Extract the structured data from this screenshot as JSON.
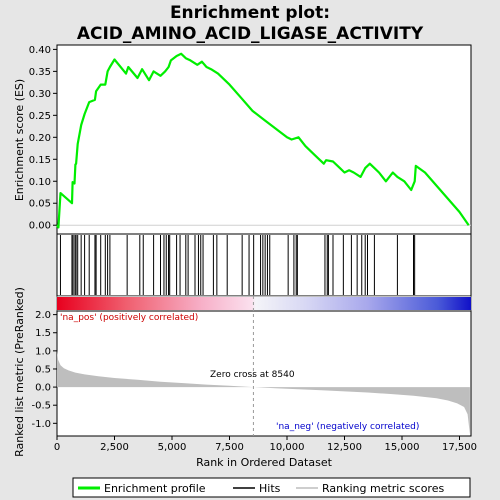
{
  "title_line1": "Enrichment plot:",
  "title_line2": "ACID_AMINO_ACID_LIGASE_ACTIVITY",
  "colors": {
    "es_line": "#00ee00",
    "hits": "#000000",
    "metric_fill": "#bebebe",
    "pos_label": "#cc0000",
    "neg_label": "#0000cc",
    "zero_line": "#999999"
  },
  "chart_data": [
    {
      "type": "line",
      "name": "enrichment-profile",
      "ylabel": "Enrichment score (ES)",
      "xlim": [
        0,
        18000
      ],
      "ylim": [
        -0.02,
        0.41
      ],
      "yticks": [
        0.0,
        0.05,
        0.1,
        0.15,
        0.2,
        0.25,
        0.3,
        0.35,
        0.4
      ],
      "ytick_labels": [
        "0.00",
        "0.05",
        "0.10",
        "0.15",
        "0.20",
        "0.25",
        "0.30",
        "0.35",
        "0.40"
      ],
      "x": [
        0,
        60,
        150,
        650,
        680,
        760,
        800,
        830,
        900,
        1050,
        1200,
        1400,
        1650,
        1700,
        1900,
        2100,
        2200,
        2300,
        2500,
        3000,
        3100,
        3500,
        3700,
        4000,
        4200,
        4500,
        4700,
        4850,
        4950,
        5200,
        5400,
        5600,
        5800,
        6100,
        6300,
        6500,
        6700,
        7000,
        7500,
        8000,
        8500,
        9000,
        9500,
        10000,
        10200,
        10500,
        10800,
        11200,
        11600,
        11700,
        12000,
        12300,
        12500,
        12700,
        12900,
        13200,
        13400,
        13600,
        13800,
        14000,
        14300,
        14600,
        14800,
        15100,
        15400,
        15550,
        15600,
        16000,
        17500,
        17900
      ],
      "y": [
        0.0,
        -0.005,
        0.073,
        0.05,
        0.098,
        0.095,
        0.138,
        0.14,
        0.185,
        0.228,
        0.253,
        0.28,
        0.285,
        0.305,
        0.32,
        0.32,
        0.35,
        0.36,
        0.377,
        0.345,
        0.36,
        0.335,
        0.355,
        0.33,
        0.35,
        0.34,
        0.35,
        0.36,
        0.375,
        0.385,
        0.39,
        0.38,
        0.375,
        0.365,
        0.372,
        0.36,
        0.355,
        0.345,
        0.32,
        0.29,
        0.26,
        0.24,
        0.22,
        0.2,
        0.195,
        0.2,
        0.18,
        0.16,
        0.14,
        0.148,
        0.145,
        0.13,
        0.12,
        0.125,
        0.12,
        0.11,
        0.13,
        0.14,
        0.13,
        0.12,
        0.1,
        0.12,
        0.11,
        0.1,
        0.08,
        0.1,
        0.135,
        0.12,
        0.03,
        0.0
      ]
    },
    {
      "type": "hits",
      "name": "hits",
      "xlim": [
        0,
        18000
      ],
      "x": [
        150,
        650,
        700,
        780,
        830,
        900,
        1050,
        1200,
        1400,
        1650,
        1700,
        1900,
        2100,
        2200,
        2300,
        3050,
        3600,
        3750,
        4200,
        4500,
        4650,
        4750,
        4850,
        4900,
        5200,
        5350,
        5600,
        5700,
        6000,
        6150,
        6250,
        6350,
        6800,
        6950,
        7400,
        8050,
        8350,
        8550,
        8850,
        8950,
        9050,
        9150,
        9250,
        10050,
        10300,
        10400,
        10450,
        11650,
        11750,
        11800,
        12000,
        12450,
        12800,
        13050,
        13250,
        13400,
        13500,
        13800,
        14800,
        15500,
        15550
      ]
    },
    {
      "type": "area",
      "name": "ranked-list-metric",
      "xlabel": "Rank in Ordered Dataset",
      "ylabel": "Ranked list metric (PreRanked)",
      "xlim": [
        0,
        18000
      ],
      "ylim": [
        -1.35,
        2.1
      ],
      "yticks": [
        -1.0,
        -0.5,
        0.0,
        0.5,
        1.0,
        1.5,
        2.0
      ],
      "ytick_labels": [
        "-1.0",
        "-0.5",
        "0.0",
        "0.5",
        "1.0",
        "1.5",
        "2.0"
      ],
      "xticks": [
        0,
        2500,
        5000,
        7500,
        10000,
        12500,
        15000,
        17500
      ],
      "xtick_labels": [
        "0",
        "2,500",
        "5,000",
        "7,500",
        "10,000",
        "12,500",
        "15,000",
        "17,500"
      ],
      "x": [
        0,
        50,
        150,
        300,
        500,
        800,
        1200,
        1800,
        2500,
        3500,
        4500,
        5500,
        6500,
        7500,
        8540,
        9500,
        10500,
        11500,
        12500,
        13500,
        14500,
        15500,
        16500,
        17000,
        17400,
        17700,
        17850,
        17950
      ],
      "y": [
        1.0,
        0.75,
        0.6,
        0.52,
        0.46,
        0.4,
        0.35,
        0.3,
        0.25,
        0.2,
        0.15,
        0.11,
        0.07,
        0.035,
        0.0,
        -0.03,
        -0.06,
        -0.09,
        -0.12,
        -0.15,
        -0.19,
        -0.24,
        -0.31,
        -0.37,
        -0.45,
        -0.55,
        -0.75,
        -1.3
      ]
    }
  ],
  "annotations": {
    "pos_label": "'na_pos' (positively correlated)",
    "neg_label": "'na_neg' (negatively correlated)",
    "zero_cross": "Zero cross at 8540",
    "zero_cross_x": 8540
  },
  "legend": {
    "items": [
      {
        "label": "Enrichment profile",
        "color": "#00ee00"
      },
      {
        "label": "Hits",
        "color": "#000000"
      },
      {
        "label": "Ranking metric scores",
        "color": "#bebebe"
      }
    ]
  }
}
